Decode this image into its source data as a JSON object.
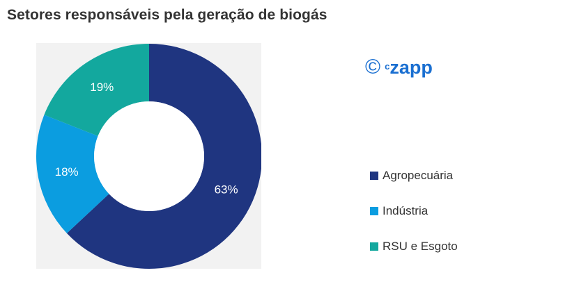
{
  "title": "Setores responsáveis pela geração de biogás",
  "brand": {
    "copyright_symbol": "©",
    "prefix": "c",
    "name": "zapp",
    "color": "#1a6fd1"
  },
  "chart_data": {
    "type": "pie",
    "title": "Setores responsáveis pela geração de biogás",
    "donut": true,
    "start_angle_deg": 0,
    "direction": "clockwise",
    "legend_position": "right",
    "series": [
      {
        "name": "Agropecuária",
        "value": 63,
        "label": "63%",
        "color": "#1f3580"
      },
      {
        "name": "Indústria",
        "value": 18,
        "label": "18%",
        "color": "#0b9de0"
      },
      {
        "name": "RSU e Esgoto",
        "value": 19,
        "label": "19%",
        "color": "#13a89e"
      }
    ]
  }
}
